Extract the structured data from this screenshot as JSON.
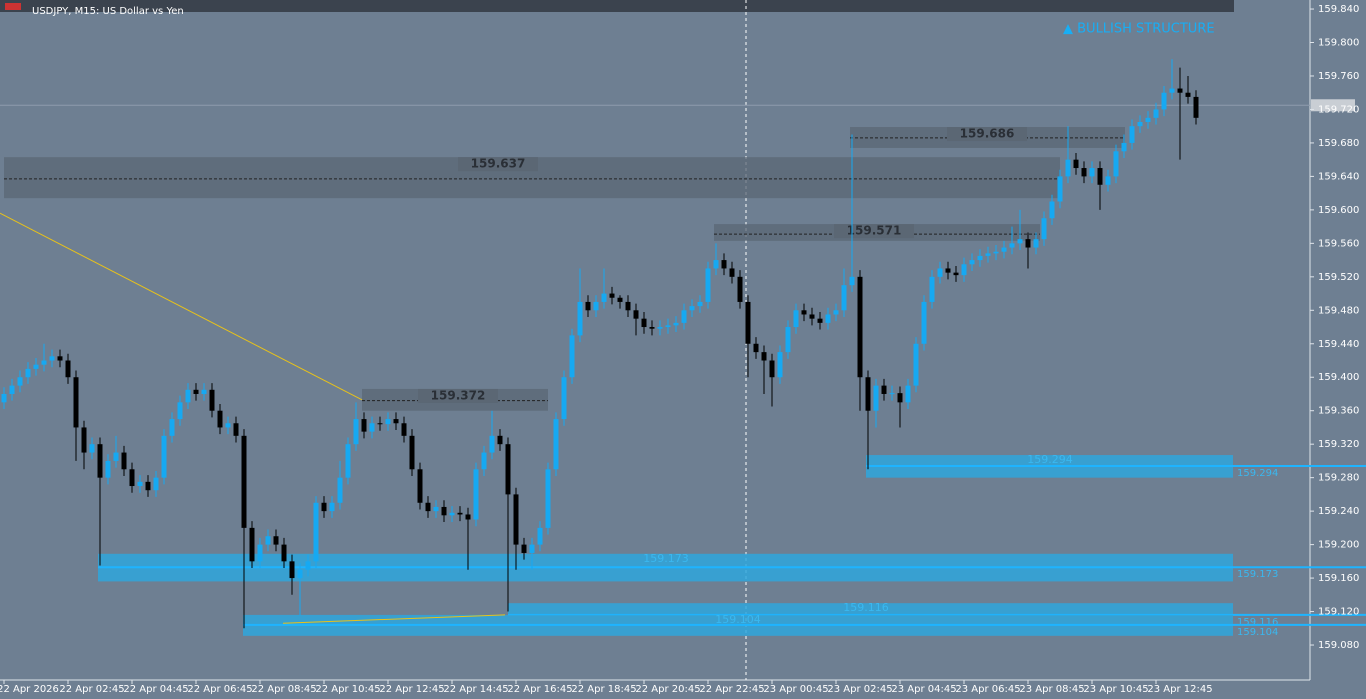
{
  "chart_data": {
    "type": "candlestick",
    "title": "USDJPY, M15:  US Dollar vs Yen",
    "annotation": "▲ BULLISH STRUCTURE",
    "up_color": "#16a9f2",
    "down_color": "#000000",
    "ylim": [
      159.0382,
      159.8508
    ],
    "yticks": [
      {
        "value": 159.84,
        "label": "159.840"
      },
      {
        "value": 159.8,
        "label": "159.800"
      },
      {
        "value": 159.76,
        "label": "159.760"
      },
      {
        "value": 159.72,
        "label": "159.720"
      },
      {
        "value": 159.68,
        "label": "159.680"
      },
      {
        "value": 159.64,
        "label": "159.640"
      },
      {
        "value": 159.6,
        "label": "159.600"
      },
      {
        "value": 159.56,
        "label": "159.560"
      },
      {
        "value": 159.52,
        "label": "159.520"
      },
      {
        "value": 159.48,
        "label": "159.480"
      },
      {
        "value": 159.44,
        "label": "159.440"
      },
      {
        "value": 159.4,
        "label": "159.400"
      },
      {
        "value": 159.36,
        "label": "159.360"
      },
      {
        "value": 159.32,
        "label": "159.320"
      },
      {
        "value": 159.28,
        "label": "159.280"
      },
      {
        "value": 159.24,
        "label": "159.240"
      },
      {
        "value": 159.2,
        "label": "159.200"
      },
      {
        "value": 159.16,
        "label": "159.160"
      },
      {
        "value": 159.12,
        "label": "159.120"
      },
      {
        "value": 159.08,
        "label": "159.080"
      }
    ],
    "time_labels": [
      "22 Apr 2026",
      "22 Apr 02:45",
      "22 Apr 04:45",
      "22 Apr 06:45",
      "22 Apr 08:45",
      "22 Apr 10:45",
      "22 Apr 12:45",
      "22 Apr 14:45",
      "22 Apr 16:45",
      "22 Apr 18:45",
      "22 Apr 20:45",
      "22 Apr 22:45",
      "23 Apr 00:45",
      "23 Apr 02:45",
      "23 Apr 04:45",
      "23 Apr 06:45",
      "23 Apr 08:45",
      "23 Apr 10:45",
      "23 Apr 12:45"
    ],
    "open": [
      159.37,
      159.38,
      159.39,
      159.4,
      159.41,
      159.415,
      159.42,
      159.425,
      159.42,
      159.4,
      159.34,
      159.31,
      159.32,
      159.28,
      159.3,
      159.31,
      159.29,
      159.27,
      159.275,
      159.265,
      159.28,
      159.33,
      159.35,
      159.37,
      159.385,
      159.38,
      159.385,
      159.36,
      159.34,
      159.345,
      159.33,
      159.22,
      159.18,
      159.2,
      159.21,
      159.2,
      159.18,
      159.16,
      159.17,
      159.18,
      159.25,
      159.24,
      159.25,
      159.28,
      159.32,
      159.35,
      159.335,
      159.345,
      159.344,
      159.35,
      159.345,
      159.33,
      159.29,
      159.25,
      159.24,
      159.245,
      159.235,
      159.238,
      159.236,
      159.23,
      159.29,
      159.31,
      159.33,
      159.32,
      159.26,
      159.2,
      159.19,
      159.2,
      159.22,
      159.29,
      159.35,
      159.4,
      159.45,
      159.49,
      159.48,
      159.49,
      159.5,
      159.495,
      159.49,
      159.48,
      159.47,
      159.46,
      159.458,
      159.46,
      159.462,
      159.465,
      159.48,
      159.485,
      159.49,
      159.53,
      159.54,
      159.53,
      159.52,
      159.49,
      159.44,
      159.43,
      159.42,
      159.4,
      159.43,
      159.46,
      159.48,
      159.475,
      159.47,
      159.465,
      159.475,
      159.48,
      159.51,
      159.52,
      159.4,
      159.36,
      159.39,
      159.38,
      159.381,
      159.37,
      159.39,
      159.44,
      159.49,
      159.52,
      159.53,
      159.525,
      159.522,
      159.535,
      159.54,
      159.545,
      159.548,
      159.55,
      159.555,
      159.56,
      159.565,
      159.555,
      159.565,
      159.59,
      159.61,
      159.64,
      159.66,
      159.65,
      159.64,
      159.65,
      159.63,
      159.64,
      159.67,
      159.68,
      159.7,
      159.705,
      159.71,
      159.72,
      159.74,
      159.745,
      159.74,
      159.735
    ],
    "high": [
      159.388,
      159.398,
      159.408,
      159.418,
      159.423,
      159.44,
      159.433,
      159.433,
      159.428,
      159.408,
      159.348,
      159.328,
      159.328,
      159.308,
      159.33,
      159.318,
      159.298,
      159.283,
      159.283,
      159.288,
      159.338,
      159.358,
      159.378,
      159.393,
      159.393,
      159.393,
      159.393,
      159.368,
      159.353,
      159.353,
      159.338,
      159.228,
      159.208,
      159.218,
      159.218,
      159.208,
      159.188,
      159.178,
      159.188,
      159.258,
      159.258,
      159.258,
      159.3,
      159.328,
      159.37,
      159.358,
      159.353,
      159.353,
      159.358,
      159.358,
      159.353,
      159.338,
      159.298,
      159.258,
      159.253,
      159.253,
      159.246,
      159.246,
      159.244,
      159.298,
      159.318,
      159.36,
      159.338,
      159.328,
      159.268,
      159.208,
      159.208,
      159.228,
      159.298,
      159.358,
      159.408,
      159.458,
      159.53,
      159.498,
      159.498,
      159.53,
      159.508,
      159.498,
      159.498,
      159.488,
      159.478,
      159.468,
      159.468,
      159.47,
      159.473,
      159.488,
      159.493,
      159.498,
      159.538,
      159.56,
      159.548,
      159.538,
      159.528,
      159.498,
      159.448,
      159.438,
      159.428,
      159.438,
      159.468,
      159.488,
      159.488,
      159.483,
      159.478,
      159.483,
      159.488,
      159.53,
      159.69,
      159.528,
      159.408,
      159.398,
      159.398,
      159.39,
      159.389,
      159.398,
      159.448,
      159.498,
      159.528,
      159.538,
      159.538,
      159.533,
      159.543,
      159.548,
      159.553,
      159.556,
      159.558,
      159.563,
      159.58,
      159.6,
      159.573,
      159.573,
      159.598,
      159.618,
      159.648,
      159.7,
      159.668,
      159.658,
      159.658,
      159.658,
      159.648,
      159.678,
      159.69,
      159.708,
      159.713,
      159.718,
      159.728,
      159.748,
      159.78,
      159.77,
      159.76,
      159.743
    ],
    "low": [
      159.362,
      159.372,
      159.382,
      159.392,
      159.402,
      159.407,
      159.412,
      159.412,
      159.392,
      159.3,
      159.29,
      159.302,
      159.175,
      159.272,
      159.292,
      159.282,
      159.262,
      159.262,
      159.257,
      159.257,
      159.272,
      159.322,
      159.342,
      159.362,
      159.372,
      159.372,
      159.352,
      159.332,
      159.332,
      159.322,
      159.1,
      159.172,
      159.172,
      159.192,
      159.192,
      159.172,
      159.14,
      159.115,
      159.162,
      159.172,
      159.232,
      159.232,
      159.242,
      159.272,
      159.312,
      159.327,
      159.327,
      159.336,
      159.336,
      159.337,
      159.322,
      159.282,
      159.242,
      159.232,
      159.232,
      159.227,
      159.227,
      159.228,
      159.17,
      159.222,
      159.282,
      159.302,
      159.312,
      159.12,
      159.17,
      159.182,
      159.17,
      159.192,
      159.212,
      159.282,
      159.342,
      159.392,
      159.442,
      159.472,
      159.472,
      159.482,
      159.487,
      159.482,
      159.472,
      159.45,
      159.452,
      159.45,
      159.45,
      159.452,
      159.454,
      159.457,
      159.472,
      159.477,
      159.482,
      159.522,
      159.522,
      159.512,
      159.482,
      159.4,
      159.422,
      159.38,
      159.365,
      159.392,
      159.422,
      159.452,
      159.467,
      159.462,
      159.457,
      159.457,
      159.467,
      159.472,
      159.502,
      159.36,
      159.29,
      159.34,
      159.372,
      159.372,
      159.34,
      159.362,
      159.382,
      159.432,
      159.482,
      159.512,
      159.517,
      159.514,
      159.514,
      159.527,
      159.532,
      159.537,
      159.54,
      159.542,
      159.547,
      159.552,
      159.53,
      159.547,
      159.557,
      159.582,
      159.602,
      159.632,
      159.642,
      159.632,
      159.632,
      159.6,
      159.622,
      159.632,
      159.662,
      159.672,
      159.692,
      159.697,
      159.702,
      159.712,
      159.732,
      159.66,
      159.727,
      159.702
    ],
    "close": [
      159.38,
      159.39,
      159.4,
      159.41,
      159.415,
      159.42,
      159.425,
      159.42,
      159.4,
      159.34,
      159.31,
      159.32,
      159.28,
      159.3,
      159.31,
      159.29,
      159.27,
      159.275,
      159.265,
      159.28,
      159.33,
      159.35,
      159.37,
      159.385,
      159.38,
      159.385,
      159.36,
      159.34,
      159.345,
      159.33,
      159.22,
      159.18,
      159.2,
      159.21,
      159.2,
      159.18,
      159.16,
      159.17,
      159.18,
      159.25,
      159.24,
      159.25,
      159.28,
      159.32,
      159.35,
      159.335,
      159.345,
      159.344,
      159.35,
      159.345,
      159.33,
      159.29,
      159.25,
      159.24,
      159.245,
      159.235,
      159.238,
      159.236,
      159.23,
      159.29,
      159.31,
      159.33,
      159.32,
      159.26,
      159.2,
      159.19,
      159.2,
      159.22,
      159.29,
      159.35,
      159.4,
      159.45,
      159.49,
      159.48,
      159.49,
      159.5,
      159.495,
      159.49,
      159.48,
      159.47,
      159.46,
      159.458,
      159.46,
      159.462,
      159.465,
      159.48,
      159.485,
      159.49,
      159.53,
      159.54,
      159.53,
      159.52,
      159.49,
      159.44,
      159.43,
      159.42,
      159.4,
      159.43,
      159.46,
      159.48,
      159.475,
      159.47,
      159.465,
      159.475,
      159.48,
      159.51,
      159.52,
      159.4,
      159.36,
      159.39,
      159.38,
      159.381,
      159.37,
      159.39,
      159.44,
      159.49,
      159.52,
      159.53,
      159.525,
      159.522,
      159.535,
      159.54,
      159.545,
      159.548,
      159.55,
      159.555,
      159.56,
      159.565,
      159.555,
      159.565,
      159.59,
      159.61,
      159.64,
      159.66,
      159.65,
      159.64,
      159.65,
      159.63,
      159.64,
      159.67,
      159.68,
      159.7,
      159.705,
      159.71,
      159.72,
      159.74,
      159.745,
      159.74,
      159.735,
      159.71
    ],
    "zones": [
      {
        "price": 159.637,
        "top": 159.663,
        "bottom": 159.614,
        "color": "#5b6774"
      },
      {
        "price": 159.686,
        "top": 159.699,
        "bottom": 159.674,
        "color": "#5b6774"
      },
      {
        "price": 159.571,
        "top": 159.583,
        "bottom": 159.563,
        "color": "#5b6774"
      },
      {
        "price": 159.372,
        "top": 159.386,
        "bottom": 159.36,
        "color": "#5b6774"
      },
      {
        "price": 159.294,
        "top": 159.307,
        "bottom": 159.28,
        "color": "#2fa6dc"
      },
      {
        "price": 159.173,
        "top": 159.189,
        "bottom": 159.156,
        "color": "#2fa6dc"
      },
      {
        "price": 159.116,
        "top": 159.13,
        "bottom": 159.117,
        "color": "#2fa6dc"
      },
      {
        "price": 159.104,
        "top": 159.116,
        "bottom": 159.091,
        "color": "#2fa6dc"
      }
    ],
    "trendlines": [
      {
        "color": "#e8c21a",
        "values": [
          159.596,
          159.373
        ]
      },
      {
        "color": "#e8c21a",
        "values": [
          159.106,
          159.116
        ]
      }
    ],
    "bid_line": 159.725
  }
}
